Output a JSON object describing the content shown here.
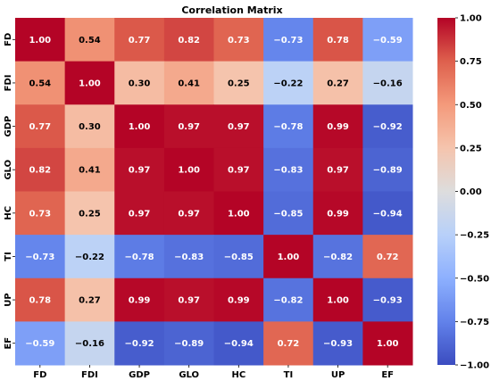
{
  "chart_data": {
    "type": "heatmap",
    "title": "Correlation Matrix",
    "rows": [
      "FD",
      "FDI",
      "GDP",
      "GLO",
      "HC",
      "TI",
      "UP",
      "EF"
    ],
    "columns": [
      "FD",
      "FDI",
      "GDP",
      "GLO",
      "HC",
      "TI",
      "UP",
      "EF"
    ],
    "values": [
      [
        1.0,
        0.54,
        0.77,
        0.82,
        0.73,
        -0.73,
        0.78,
        -0.59
      ],
      [
        0.54,
        1.0,
        0.3,
        0.41,
        0.25,
        -0.22,
        0.27,
        -0.16
      ],
      [
        0.77,
        0.3,
        1.0,
        0.97,
        0.97,
        -0.78,
        0.99,
        -0.92
      ],
      [
        0.82,
        0.41,
        0.97,
        1.0,
        0.97,
        -0.83,
        0.97,
        -0.89
      ],
      [
        0.73,
        0.25,
        0.97,
        0.97,
        1.0,
        -0.85,
        0.99,
        -0.94
      ],
      [
        -0.73,
        -0.22,
        -0.78,
        -0.83,
        -0.85,
        1.0,
        -0.82,
        0.72
      ],
      [
        0.78,
        0.27,
        0.99,
        0.97,
        0.99,
        -0.82,
        1.0,
        -0.93
      ],
      [
        -0.59,
        -0.16,
        -0.92,
        -0.89,
        -0.94,
        0.72,
        -0.93,
        1.0
      ]
    ],
    "value_labels": [
      [
        "1.00",
        "0.54",
        "0.77",
        "0.82",
        "0.73",
        "−0.73",
        "0.78",
        "−0.59"
      ],
      [
        "0.54",
        "1.00",
        "0.30",
        "0.41",
        "0.25",
        "−0.22",
        "0.27",
        "−0.16"
      ],
      [
        "0.77",
        "0.30",
        "1.00",
        "0.97",
        "0.97",
        "−0.78",
        "0.99",
        "−0.92"
      ],
      [
        "0.82",
        "0.41",
        "0.97",
        "1.00",
        "0.97",
        "−0.83",
        "0.97",
        "−0.89"
      ],
      [
        "0.73",
        "0.25",
        "0.97",
        "0.97",
        "1.00",
        "−0.85",
        "0.99",
        "−0.94"
      ],
      [
        "−0.73",
        "−0.22",
        "−0.78",
        "−0.83",
        "−0.85",
        "1.00",
        "−0.82",
        "0.72"
      ],
      [
        "0.78",
        "0.27",
        "0.99",
        "0.97",
        "0.99",
        "−0.82",
        "1.00",
        "−0.93"
      ],
      [
        "−0.59",
        "−0.16",
        "−0.92",
        "−0.89",
        "−0.94",
        "0.72",
        "−0.93",
        "1.00"
      ]
    ],
    "colormap": "coolwarm",
    "vmin": -1.0,
    "vmax": 1.0,
    "colorbar_ticks": [
      1.0,
      0.75,
      0.5,
      0.25,
      0.0,
      -0.25,
      -0.5,
      -0.75,
      -1.0
    ],
    "colorbar_tick_labels": [
      "1.00",
      "0.75",
      "0.50",
      "0.25",
      "0.00",
      "−0.25",
      "−0.50",
      "−0.75",
      "−1.00"
    ],
    "colors": {
      "low": "#3b4cc0",
      "mid": "#dddddd",
      "high": "#b40426"
    }
  }
}
